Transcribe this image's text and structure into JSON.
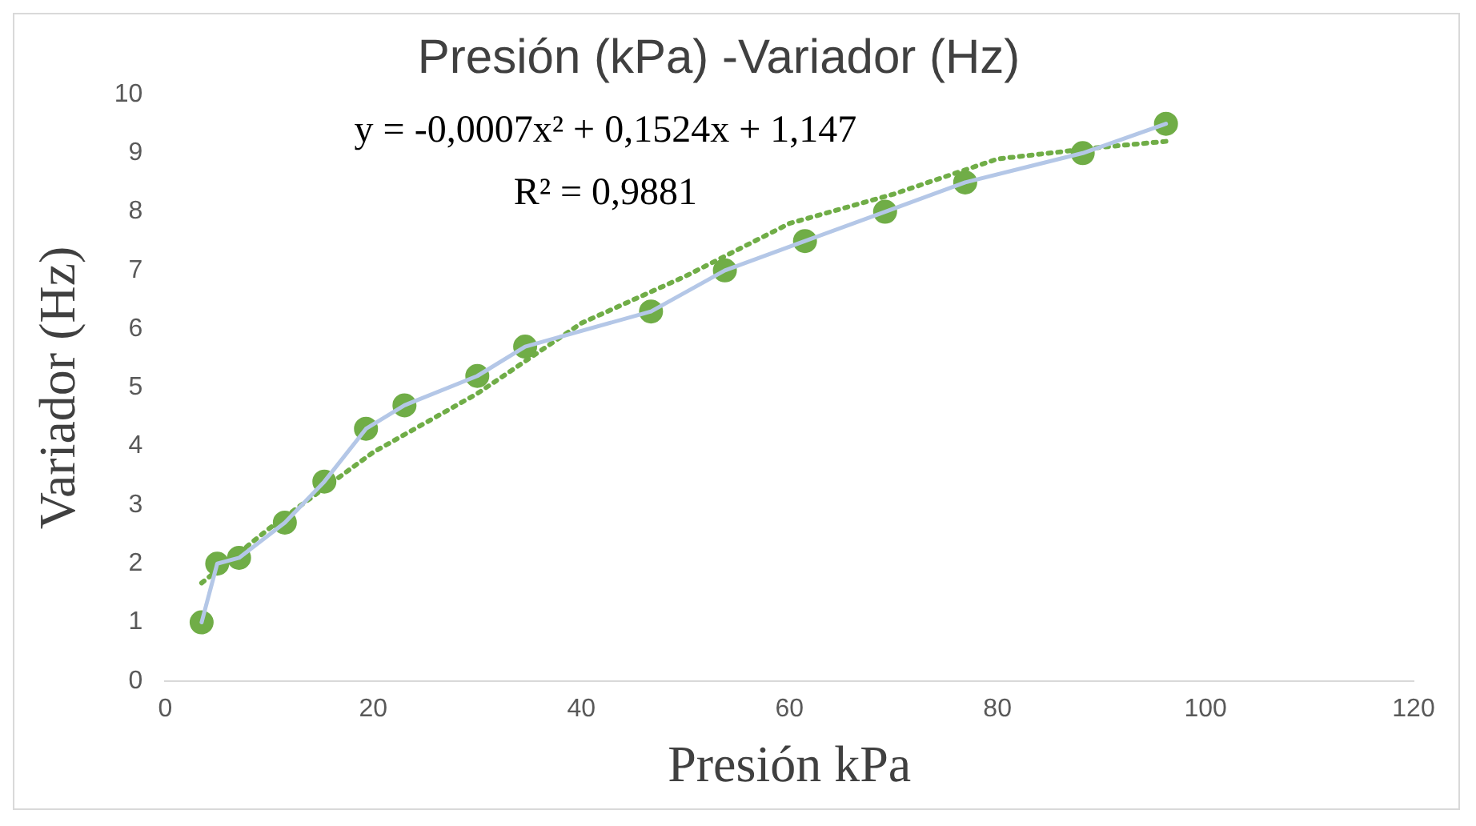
{
  "chart_data": {
    "type": "line",
    "title": "Presión (kPa) -Variador (Hz)",
    "xlabel": "Presión kPa",
    "ylabel": "Variador (Hz)",
    "xlim": [
      0,
      120
    ],
    "xticks": [
      0,
      20,
      40,
      60,
      80,
      100,
      120
    ],
    "ylim": [
      0,
      10
    ],
    "yticks": [
      0,
      1,
      2,
      3,
      4,
      5,
      6,
      7,
      8,
      9,
      10
    ],
    "grid": false,
    "legend": false,
    "annotations": [
      "y = -0,0007x² + 0,1524x + 1,147",
      "R² = 0,9881"
    ],
    "series": [
      {
        "color": "#b4c7e7",
        "marker": "none",
        "line_style": "solid",
        "x": [
          3.5,
          5.0,
          7.1,
          11.5,
          15.3,
          19.3,
          23,
          30,
          34.6,
          46.7,
          53.8,
          61.5,
          69.2,
          76.9,
          88.2,
          96.2
        ],
        "values": [
          1.0,
          2.0,
          2.1,
          2.7,
          3.4,
          4.3,
          4.7,
          5.2,
          5.7,
          6.3,
          7.0,
          7.5,
          8.0,
          8.5,
          9.0,
          9.5
        ]
      },
      {
        "type": "scatter",
        "color": "#70ad47",
        "marker": "circle",
        "x": [
          3.5,
          5.0,
          7.1,
          11.5,
          15.3,
          19.3,
          23,
          30,
          34.6,
          46.7,
          53.8,
          61.5,
          69.2,
          76.9,
          88.2,
          96.2
        ],
        "values": [
          1.0,
          2.0,
          2.1,
          2.7,
          3.4,
          4.3,
          4.7,
          5.2,
          5.7,
          6.3,
          7.0,
          7.5,
          8.0,
          8.5,
          9.0,
          9.5
        ]
      },
      {
        "type": "line",
        "color": "#70ad47",
        "marker": "none",
        "line_style": "dotted",
        "x": [
          3.5,
          10,
          20,
          30,
          40,
          50,
          60,
          70,
          80,
          90,
          96.2
        ],
        "values": [
          1.67,
          2.6,
          3.9,
          4.9,
          6.1,
          6.9,
          7.8,
          8.3,
          8.9,
          9.1,
          9.2
        ]
      }
    ]
  }
}
